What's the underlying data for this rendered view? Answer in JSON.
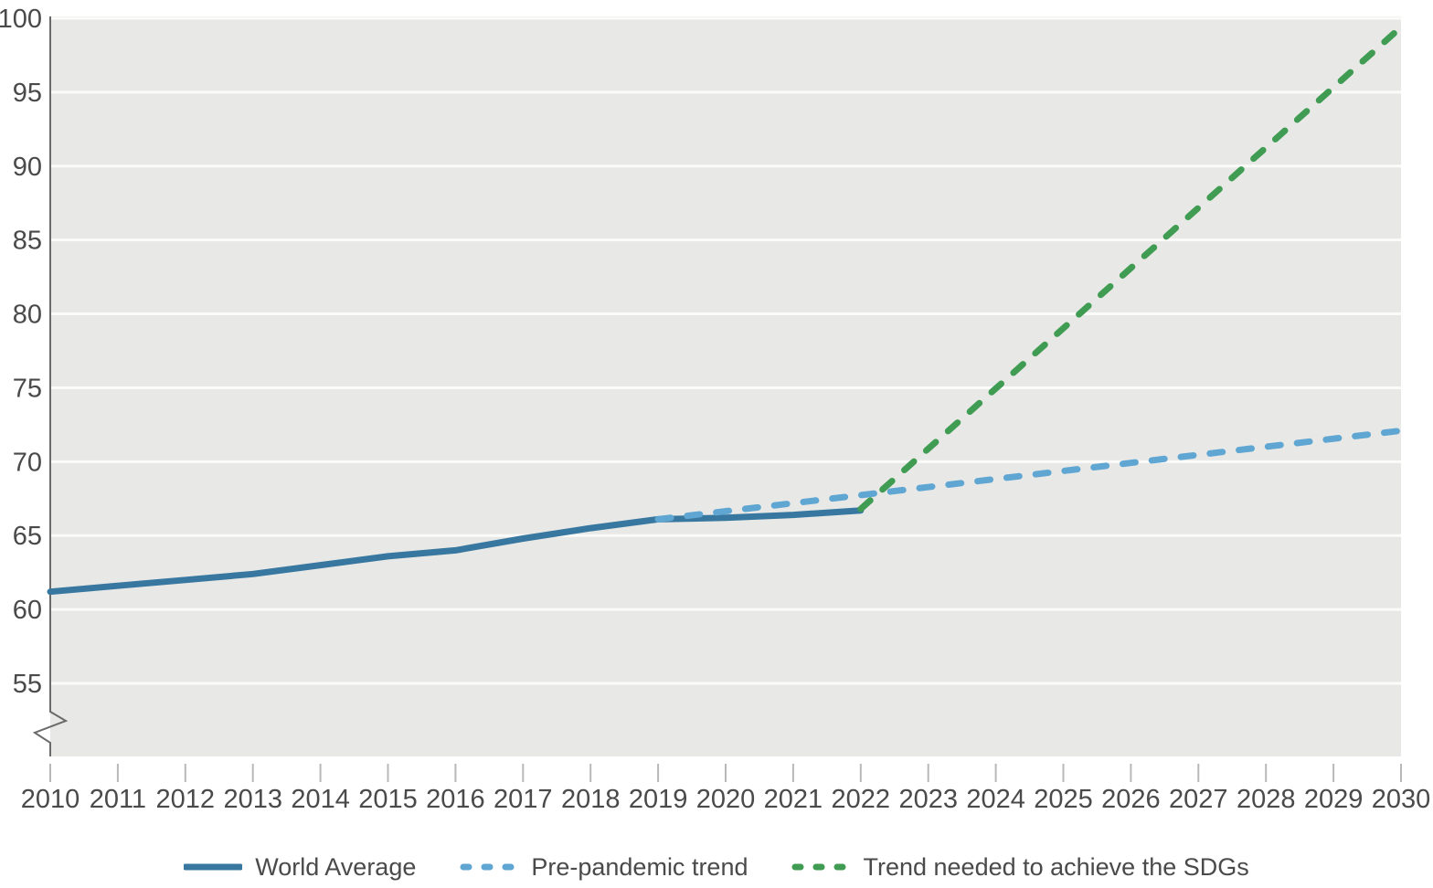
{
  "chart_data": {
    "type": "line",
    "title": "",
    "xlabel": "",
    "ylabel": "",
    "x_axis": {
      "range": [
        2010,
        2030
      ],
      "ticks": [
        2010,
        2011,
        2012,
        2013,
        2014,
        2015,
        2016,
        2017,
        2018,
        2019,
        2020,
        2021,
        2022,
        2023,
        2024,
        2025,
        2026,
        2027,
        2028,
        2029,
        2030
      ]
    },
    "y_axis": {
      "range": [
        55,
        100
      ],
      "ticks": [
        55,
        60,
        65,
        70,
        75,
        80,
        85,
        90,
        95,
        100
      ],
      "axis_break_at_bottom": true
    },
    "grid": "horizontal-white-on-gray",
    "legend_position": "bottom",
    "series": [
      {
        "name": "World Average",
        "style": "solid",
        "color": "#3878a0",
        "x": [
          2010,
          2011,
          2012,
          2013,
          2014,
          2015,
          2016,
          2017,
          2018,
          2019,
          2020,
          2021,
          2022
        ],
        "values": [
          61.2,
          61.6,
          62.0,
          62.4,
          63.0,
          63.6,
          64.0,
          64.8,
          65.5,
          66.1,
          66.2,
          66.4,
          66.7
        ]
      },
      {
        "name": "Pre-pandemic trend",
        "style": "dashed",
        "color": "#5fa6d3",
        "x": [
          2019,
          2030
        ],
        "values": [
          66.1,
          72.1
        ]
      },
      {
        "name": "Trend needed to achieve the SDGs",
        "style": "dashed",
        "color": "#3f9c52",
        "x": [
          2022,
          2030
        ],
        "values": [
          66.8,
          99.4
        ]
      }
    ],
    "colors": {
      "plot_background": "#e8e8e6",
      "gridline": "#fbfbfa",
      "axis_line": "#6a6a6a",
      "tick_mark": "#b8b8b8",
      "label_text": "#4a4a4a"
    }
  }
}
